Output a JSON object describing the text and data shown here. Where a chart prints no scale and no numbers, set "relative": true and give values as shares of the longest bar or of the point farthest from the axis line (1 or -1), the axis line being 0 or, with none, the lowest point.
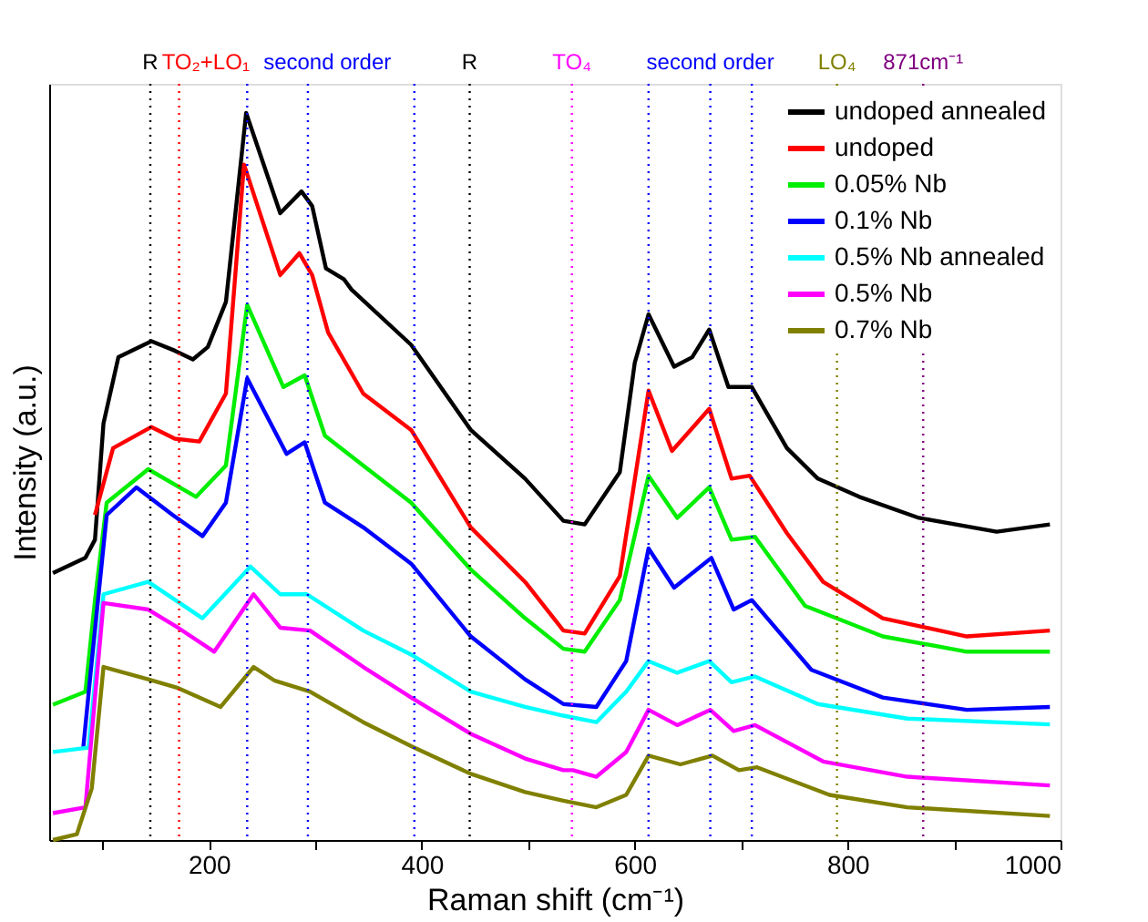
{
  "chart_data": {
    "type": "line",
    "relative": true,
    "xlabel": "Raman shift (cm⁻¹)",
    "ylabel": "Intensity (a.u.)",
    "xlim": [
      50,
      1000
    ],
    "xticks": [
      {
        "value": 100,
        "label": null
      },
      200,
      {
        "value": 300,
        "label": null
      },
      400,
      {
        "value": 500,
        "label": null
      },
      600,
      {
        "value": 700,
        "label": null
      },
      800,
      {
        "value": 900,
        "label": null
      },
      1000
    ],
    "tick_labels": "x",
    "grid": false,
    "legend": "top right",
    "line_style": "solid",
    "marker": "none",
    "series": [
      {
        "name": "undoped  annealed",
        "color": "#000000",
        "x": [
          53.5,
          84,
          93,
          101,
          115,
          146,
          168,
          185,
          199,
          216,
          235,
          267,
          287,
          297,
          310,
          327,
          334,
          390,
          446,
          497,
          533,
          553,
          586,
          600,
          613,
          637,
          654,
          670,
          688,
          710,
          743,
          772,
          811,
          867,
          940,
          990
        ],
        "values": [
          0.367,
          0.388,
          0.413,
          0.573,
          0.664,
          0.686,
          0.673,
          0.661,
          0.678,
          0.74,
          1.0,
          0.862,
          0.892,
          0.872,
          0.786,
          0.771,
          0.757,
          0.681,
          0.564,
          0.497,
          0.439,
          0.434,
          0.506,
          0.656,
          0.723,
          0.651,
          0.664,
          0.702,
          0.623,
          0.623,
          0.539,
          0.497,
          0.472,
          0.443,
          0.424,
          0.434
        ]
      },
      {
        "name": "undoped",
        "color": "#ff0000",
        "x": [
          93,
          110,
          146,
          168,
          191,
          216,
          233,
          267,
          285,
          297,
          312,
          345,
          390,
          446,
          497,
          533,
          553,
          586,
          613,
          635,
          670,
          691,
          708,
          743,
          777,
          833,
          912,
          990
        ],
        "values": [
          0.447,
          0.539,
          0.568,
          0.552,
          0.548,
          0.614,
          0.929,
          0.777,
          0.807,
          0.777,
          0.698,
          0.614,
          0.564,
          0.43,
          0.355,
          0.288,
          0.284,
          0.363,
          0.618,
          0.535,
          0.593,
          0.497,
          0.501,
          0.422,
          0.355,
          0.305,
          0.28,
          0.288
        ]
      },
      {
        "name": "0.05% Nb",
        "color": "#00ee00",
        "x": [
          53.5,
          84,
          93,
          104,
          143,
          188,
          216,
          236,
          270,
          290,
          309,
          345,
          390,
          446,
          497,
          533,
          553,
          586,
          613,
          640,
          670,
          691,
          713,
          760,
          833,
          912,
          990
        ],
        "values": [
          0.186,
          0.204,
          0.33,
          0.464,
          0.51,
          0.472,
          0.515,
          0.736,
          0.623,
          0.639,
          0.556,
          0.515,
          0.464,
          0.372,
          0.305,
          0.263,
          0.259,
          0.33,
          0.501,
          0.443,
          0.485,
          0.413,
          0.417,
          0.322,
          0.28,
          0.259,
          0.259
        ]
      },
      {
        "name": "0.1% Nb",
        "color": "#0000ff",
        "x": [
          82,
          90,
          104,
          132,
          166,
          194,
          216,
          236,
          273,
          290,
          309,
          345,
          390,
          446,
          497,
          533,
          564,
          592,
          613,
          637,
          672,
          693,
          710,
          766,
          833,
          912,
          990
        ],
        "values": [
          0.127,
          0.246,
          0.447,
          0.485,
          0.447,
          0.418,
          0.464,
          0.635,
          0.531,
          0.547,
          0.464,
          0.43,
          0.38,
          0.28,
          0.221,
          0.187,
          0.183,
          0.246,
          0.401,
          0.347,
          0.388,
          0.317,
          0.33,
          0.234,
          0.196,
          0.179,
          0.183
        ]
      },
      {
        "name": "0.5% Nb annealed",
        "color": "#00ffff",
        "x": [
          53.5,
          87,
          101,
          143,
          194,
          239,
          267,
          292,
          345,
          390,
          446,
          497,
          533,
          564,
          592,
          613,
          640,
          670,
          691,
          713,
          772,
          856,
          990
        ],
        "values": [
          0.121,
          0.127,
          0.338,
          0.355,
          0.305,
          0.376,
          0.338,
          0.338,
          0.288,
          0.255,
          0.204,
          0.183,
          0.171,
          0.162,
          0.204,
          0.246,
          0.23,
          0.246,
          0.217,
          0.225,
          0.187,
          0.167,
          0.159
        ]
      },
      {
        "name": "0.5% Nb",
        "color": "#ff00ff",
        "x": [
          53.5,
          84,
          93,
          101,
          143,
          171,
          205,
          242,
          267,
          295,
          345,
          390,
          446,
          497,
          533,
          542,
          564,
          592,
          613,
          640,
          671,
          693,
          713,
          777,
          856,
          990
        ],
        "values": [
          0.037,
          0.045,
          0.196,
          0.326,
          0.317,
          0.292,
          0.259,
          0.338,
          0.292,
          0.288,
          0.238,
          0.196,
          0.146,
          0.112,
          0.096,
          0.096,
          0.087,
          0.121,
          0.179,
          0.158,
          0.179,
          0.15,
          0.158,
          0.108,
          0.087,
          0.075
        ]
      },
      {
        "name": "0.7% Nb",
        "color": "#808000",
        "x": [
          53.5,
          76,
          90,
          101,
          143,
          171,
          211,
          242,
          262,
          295,
          345,
          390,
          446,
          497,
          533,
          564,
          592,
          613,
          643,
          673,
          698,
          715,
          783,
          856,
          990
        ],
        "values": [
          0.0,
          0.008,
          0.071,
          0.238,
          0.221,
          0.209,
          0.183,
          0.238,
          0.219,
          0.204,
          0.162,
          0.129,
          0.091,
          0.066,
          0.054,
          0.045,
          0.062,
          0.116,
          0.104,
          0.116,
          0.096,
          0.1,
          0.062,
          0.045,
          0.033
        ]
      }
    ],
    "ref_lines": [
      {
        "axis": "x",
        "value": 145,
        "label": "R",
        "color": "#000000",
        "line_style": "dotted"
      },
      {
        "axis": "x",
        "value": 172,
        "label": "TO₂+LO₁",
        "color": "#ff0000",
        "line_style": "dotted"
      },
      {
        "axis": "x",
        "value": 236,
        "label": null,
        "color": "#0000ff",
        "line_style": "dotted"
      },
      {
        "axis": "x",
        "value": 293,
        "label": "second order",
        "color": "#0000ff",
        "line_style": "dotted"
      },
      {
        "axis": "x",
        "value": 393,
        "label": null,
        "color": "#0000ff",
        "line_style": "dotted"
      },
      {
        "axis": "x",
        "value": 445,
        "label": "R",
        "color": "#000000",
        "line_style": "dotted"
      },
      {
        "axis": "x",
        "value": 541,
        "label": "TO₄",
        "color": "#ff00ff",
        "line_style": "dotted"
      },
      {
        "axis": "x",
        "value": 613,
        "label": null,
        "color": "#0000ff",
        "line_style": "dotted"
      },
      {
        "axis": "x",
        "value": 671,
        "label": "second order",
        "color": "#0000ff",
        "line_style": "dotted"
      },
      {
        "axis": "x",
        "value": 710,
        "label": null,
        "color": "#0000ff",
        "line_style": "dotted"
      },
      {
        "axis": "x",
        "value": 790,
        "label": "LO₄",
        "color": "#808000",
        "line_style": "dotted"
      },
      {
        "axis": "x",
        "value": 871,
        "label": "871cm⁻¹",
        "color": "#800080",
        "line_style": "dotted"
      }
    ]
  }
}
